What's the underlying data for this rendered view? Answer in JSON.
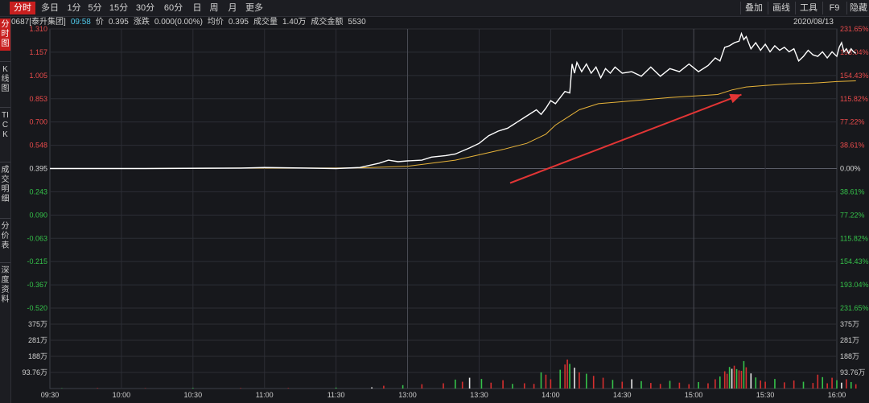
{
  "toolbar": {
    "tabs": [
      "分时",
      "多日",
      "1分",
      "5分",
      "15分",
      "30分",
      "60分",
      "日",
      "周",
      "月",
      "更多"
    ],
    "tools": [
      "叠加",
      "画线",
      "工具",
      "F9",
      "隐藏"
    ]
  },
  "sidebar": {
    "tabs": [
      "分时图",
      "K线图",
      "TICK",
      "成交明细",
      "分价表",
      "深度资料"
    ]
  },
  "info": {
    "code_name": "0687[泰升集团]",
    "time": "09:58",
    "price_label": "价",
    "price": "0.395",
    "change_label": "涨跌",
    "change": "0.000(0.00%)",
    "avg_label": "均价",
    "avg": "0.395",
    "volume_label": "成交量",
    "volume": "1.40万",
    "amount_label": "成交金额",
    "amount": "5530",
    "date": "2020/08/13"
  },
  "chart_data": {
    "type": "line",
    "preclose": 0.395,
    "price_axis": {
      "ticks": [
        "1.310",
        "1.157",
        "1.005",
        "0.853",
        "0.700",
        "0.548",
        "0.395",
        "0.243",
        "0.090",
        "-0.063",
        "-0.215",
        "-0.367",
        "-0.520"
      ],
      "ylim": [
        -0.52,
        1.31
      ]
    },
    "pct_axis": {
      "ticks": [
        "231.65%",
        "193.04%",
        "154.43%",
        "115.82%",
        "77.22%",
        "38.61%",
        "0.00%",
        "38.61%",
        "77.22%",
        "115.82%",
        "154.43%",
        "193.04%",
        "231.65%"
      ]
    },
    "volume_axis": {
      "ticks": [
        "375万",
        "281万",
        "188万",
        "93.76万"
      ],
      "ylim": [
        0,
        470
      ]
    },
    "time_axis": {
      "ticks": [
        "09:30",
        "10:00",
        "10:30",
        "11:00",
        "11:30",
        "13:00",
        "13:30",
        "14:00",
        "14:30",
        "15:00",
        "15:30",
        "16:00"
      ]
    },
    "series": [
      {
        "role": "price",
        "color": "#ffffff",
        "points": [
          [
            0,
            0.395
          ],
          [
            40,
            0.395
          ],
          [
            80,
            0.398
          ],
          [
            90,
            0.402
          ],
          [
            120,
            0.395
          ],
          [
            130,
            0.402
          ],
          [
            138,
            0.43
          ],
          [
            142,
            0.45
          ],
          [
            146,
            0.44
          ],
          [
            150,
            0.445
          ],
          [
            156,
            0.45
          ],
          [
            160,
            0.47
          ],
          [
            166,
            0.48
          ],
          [
            170,
            0.49
          ],
          [
            176,
            0.53
          ],
          [
            180,
            0.56
          ],
          [
            184,
            0.61
          ],
          [
            188,
            0.64
          ],
          [
            192,
            0.66
          ],
          [
            196,
            0.7
          ],
          [
            200,
            0.74
          ],
          [
            204,
            0.78
          ],
          [
            206,
            0.75
          ],
          [
            208,
            0.79
          ],
          [
            210,
            0.84
          ],
          [
            212,
            0.82
          ],
          [
            214,
            0.86
          ],
          [
            216,
            0.9
          ],
          [
            218,
            0.89
          ],
          [
            219,
            1.08
          ],
          [
            220,
            1.02
          ],
          [
            221,
            1.09
          ],
          [
            223,
            1.03
          ],
          [
            225,
            1.08
          ],
          [
            227,
            1.02
          ],
          [
            229,
            1.06
          ],
          [
            231,
            0.99
          ],
          [
            233,
            1.05
          ],
          [
            235,
            1.02
          ],
          [
            237,
            1.06
          ],
          [
            240,
            1.02
          ],
          [
            244,
            1.03
          ],
          [
            248,
            1.0
          ],
          [
            252,
            1.06
          ],
          [
            256,
            1.0
          ],
          [
            260,
            1.05
          ],
          [
            264,
            1.03
          ],
          [
            268,
            1.08
          ],
          [
            272,
            1.03
          ],
          [
            276,
            1.07
          ],
          [
            279,
            1.12
          ],
          [
            281,
            1.1
          ],
          [
            283,
            1.19
          ],
          [
            285,
            1.2
          ],
          [
            287,
            1.22
          ],
          [
            289,
            1.23
          ],
          [
            290,
            1.28
          ],
          [
            291,
            1.24
          ],
          [
            292,
            1.26
          ],
          [
            294,
            1.18
          ],
          [
            296,
            1.22
          ],
          [
            298,
            1.17
          ],
          [
            300,
            1.21
          ],
          [
            302,
            1.16
          ],
          [
            304,
            1.2
          ],
          [
            306,
            1.17
          ],
          [
            308,
            1.19
          ],
          [
            310,
            1.16
          ],
          [
            312,
            1.18
          ],
          [
            314,
            1.1
          ],
          [
            316,
            1.13
          ],
          [
            318,
            1.17
          ],
          [
            320,
            1.14
          ],
          [
            322,
            1.13
          ],
          [
            324,
            1.16
          ],
          [
            326,
            1.12
          ],
          [
            328,
            1.16
          ],
          [
            330,
            1.13
          ],
          [
            331,
            1.19
          ],
          [
            332,
            1.22
          ],
          [
            333,
            1.16
          ],
          [
            334,
            1.18
          ],
          [
            335,
            1.15
          ],
          [
            336,
            1.18
          ],
          [
            337,
            1.16
          ],
          [
            338,
            1.15
          ]
        ],
        "avg_points": [
          [
            0,
            0.395
          ],
          [
            40,
            0.395
          ],
          [
            80,
            0.398
          ],
          [
            120,
            0.398
          ],
          [
            130,
            0.4
          ],
          [
            150,
            0.41
          ],
          [
            170,
            0.45
          ],
          [
            190,
            0.52
          ],
          [
            200,
            0.56
          ],
          [
            208,
            0.62
          ],
          [
            212,
            0.68
          ],
          [
            216,
            0.72
          ],
          [
            222,
            0.78
          ],
          [
            230,
            0.82
          ],
          [
            245,
            0.84
          ],
          [
            260,
            0.86
          ],
          [
            270,
            0.87
          ],
          [
            280,
            0.88
          ],
          [
            286,
            0.91
          ],
          [
            292,
            0.93
          ],
          [
            300,
            0.94
          ],
          [
            310,
            0.95
          ],
          [
            320,
            0.955
          ],
          [
            330,
            0.965
          ],
          [
            338,
            0.97
          ]
        ]
      }
    ],
    "volume": [
      [
        5,
        2
      ],
      [
        20,
        3
      ],
      [
        40,
        2
      ],
      [
        60,
        4
      ],
      [
        80,
        3
      ],
      [
        100,
        3
      ],
      [
        120,
        6
      ],
      [
        135,
        8
      ],
      [
        140,
        18
      ],
      [
        148,
        22
      ],
      [
        156,
        28
      ],
      [
        165,
        34
      ],
      [
        170,
        58
      ],
      [
        173,
        44
      ],
      [
        176,
        70
      ],
      [
        181,
        62
      ],
      [
        185,
        38
      ],
      [
        190,
        54
      ],
      [
        194,
        30
      ],
      [
        199,
        34
      ],
      [
        203,
        30
      ],
      [
        206,
        105
      ],
      [
        208,
        90
      ],
      [
        210,
        60
      ],
      [
        214,
        122
      ],
      [
        216,
        156
      ],
      [
        217,
        188
      ],
      [
        218,
        160
      ],
      [
        220,
        135
      ],
      [
        222,
        105
      ],
      [
        225,
        96
      ],
      [
        228,
        82
      ],
      [
        232,
        70
      ],
      [
        236,
        56
      ],
      [
        240,
        44
      ],
      [
        244,
        60
      ],
      [
        248,
        48
      ],
      [
        252,
        36
      ],
      [
        256,
        30
      ],
      [
        260,
        50
      ],
      [
        264,
        38
      ],
      [
        268,
        28
      ],
      [
        272,
        42
      ],
      [
        276,
        34
      ],
      [
        279,
        60
      ],
      [
        281,
        78
      ],
      [
        283,
        112
      ],
      [
        284,
        96
      ],
      [
        285,
        140
      ],
      [
        286,
        128
      ],
      [
        287,
        148
      ],
      [
        288,
        126
      ],
      [
        289,
        118
      ],
      [
        290,
        115
      ],
      [
        291,
        178
      ],
      [
        292,
        138
      ],
      [
        294,
        98
      ],
      [
        296,
        72
      ],
      [
        298,
        52
      ],
      [
        300,
        44
      ],
      [
        304,
        62
      ],
      [
        308,
        40
      ],
      [
        312,
        52
      ],
      [
        316,
        44
      ],
      [
        320,
        36
      ],
      [
        322,
        90
      ],
      [
        324,
        74
      ],
      [
        326,
        34
      ],
      [
        328,
        70
      ],
      [
        330,
        54
      ],
      [
        332,
        38
      ],
      [
        334,
        60
      ],
      [
        336,
        42
      ],
      [
        338,
        28
      ]
    ],
    "annotations": [
      {
        "type": "arrow",
        "color": "#e23535",
        "from_time": 193,
        "from_price": 0.3,
        "to_time": 290,
        "to_price": 0.88
      }
    ]
  }
}
